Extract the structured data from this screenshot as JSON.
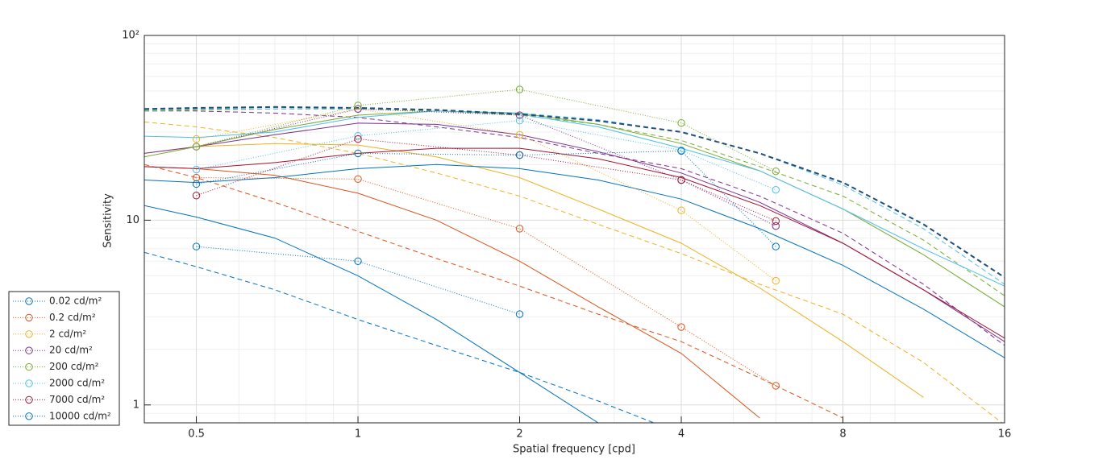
{
  "chart_data": {
    "type": "line",
    "xlabel": "Spatial frequency [cpd]",
    "ylabel": "Sensitivity",
    "xscale": "log",
    "yscale": "log",
    "xlim": [
      0.4,
      16
    ],
    "ylim": [
      0.8,
      100
    ],
    "xticks": [
      0.5,
      1,
      2,
      4,
      8,
      16
    ],
    "yticks": [
      1,
      10,
      {
        "value": 100,
        "label": "10²"
      }
    ],
    "xminor": [
      0.6,
      0.7,
      0.8,
      0.9,
      3,
      5,
      6,
      7,
      9,
      10
    ],
    "yminor": [
      0.9,
      2,
      3,
      4,
      5,
      6,
      7,
      8,
      9,
      20,
      30,
      40,
      50,
      60,
      70,
      80,
      90
    ],
    "grid": true,
    "legend": "outside-bottom-left",
    "x": [
      0.5,
      1,
      2,
      4,
      6
    ],
    "series": [
      {
        "name": "0.02 cd/m²",
        "color": "#0072bd",
        "values": [
          7.2,
          6.0,
          3.1,
          null,
          null
        ]
      },
      {
        "name": "0.2 cd/m²",
        "color": "#d95319",
        "values": [
          17,
          16.7,
          9.0,
          2.64,
          1.27
        ]
      },
      {
        "name": "2 cd/m²",
        "color": "#edb120",
        "values": [
          27.5,
          40,
          29,
          11.3,
          4.7
        ]
      },
      {
        "name": "20 cd/m²",
        "color": "#7e2f8e",
        "values": [
          25,
          40,
          37,
          16.5,
          9.3
        ]
      },
      {
        "name": "200 cd/m²",
        "color": "#77ac30",
        "values": [
          25,
          41.8,
          51,
          33.6,
          18.4
        ]
      },
      {
        "name": "2000 cd/m²",
        "color": "#4dbeee",
        "values": [
          18.8,
          28.6,
          34.6,
          23.9,
          14.6
        ]
      },
      {
        "name": "7000 cd/m²",
        "color": "#a2142f",
        "values": [
          13.6,
          27.5,
          22.5,
          16.5,
          9.9
        ]
      },
      {
        "name": "10000 cd/m²",
        "color": "#0072bd",
        "values": [
          15.7,
          23,
          22.5,
          23.7,
          7.2
        ]
      }
    ],
    "model_x": [
      0.4,
      0.5,
      0.7,
      1,
      1.4,
      2,
      2.8,
      4,
      5.6,
      8,
      11.3,
      16
    ],
    "model_curves": [
      {
        "color": "#0072bd",
        "style": "solid",
        "values": [
          12,
          10.4,
          8,
          5,
          2.9,
          1.5,
          0.8,
          null,
          null,
          null,
          null,
          null
        ]
      },
      {
        "color": "#0072bd",
        "style": "dashed",
        "values": [
          6.7,
          5.6,
          4.2,
          2.9,
          2.1,
          1.5,
          1.05,
          0.7,
          null,
          null,
          null,
          null
        ]
      },
      {
        "color": "#d95319",
        "style": "solid",
        "values": [
          19.5,
          19,
          17.5,
          14,
          10,
          6,
          3.4,
          1.9,
          0.85,
          null,
          null,
          null
        ]
      },
      {
        "color": "#d95319",
        "style": "dashed",
        "values": [
          20,
          17,
          12.5,
          8.7,
          6.2,
          4.4,
          3.1,
          2.2,
          1.4,
          0.85,
          null,
          null
        ]
      },
      {
        "color": "#edb120",
        "style": "solid",
        "values": [
          23,
          25,
          26,
          25.5,
          22,
          17,
          11.5,
          7.5,
          4.3,
          2.2,
          1.1,
          null
        ]
      },
      {
        "color": "#edb120",
        "style": "dashed",
        "values": [
          34,
          32,
          28,
          23,
          18,
          13.5,
          9.5,
          6.6,
          4.5,
          3.1,
          1.7,
          0.78
        ]
      },
      {
        "color": "#7e2f8e",
        "style": "solid",
        "values": [
          23,
          25,
          29,
          33.5,
          33,
          29,
          23.5,
          18,
          12.5,
          7.5,
          4.2,
          2.2
        ]
      },
      {
        "color": "#7e2f8e",
        "style": "dashed",
        "values": [
          39,
          39,
          38,
          36,
          32,
          28,
          23,
          19,
          13.5,
          8.5,
          4.5,
          2.1
        ]
      },
      {
        "color": "#77ac30",
        "style": "solid",
        "values": [
          22,
          25,
          31,
          37,
          39,
          38,
          33,
          26,
          18.5,
          11.5,
          6.5,
          3.4
        ]
      },
      {
        "color": "#77ac30",
        "style": "dashed",
        "values": [
          39,
          39.5,
          40,
          40,
          39,
          37,
          33,
          27,
          19.5,
          13.5,
          7.8,
          3.9
        ]
      },
      {
        "color": "#4dbeee",
        "style": "solid",
        "values": [
          28.5,
          28,
          30,
          36,
          39,
          37.5,
          32,
          24.5,
          18.5,
          11.5,
          7,
          4.4
        ]
      },
      {
        "color": "#4dbeee",
        "style": "dashed",
        "values": [
          39.5,
          40,
          40,
          40,
          39.5,
          38,
          35,
          30,
          23,
          15.5,
          9,
          4.5
        ]
      },
      {
        "color": "#a2142f",
        "style": "solid",
        "values": [
          19.5,
          19,
          20.5,
          23,
          24.5,
          24.5,
          21.5,
          17,
          12,
          7.5,
          4.2,
          2.3
        ]
      },
      {
        "color": "#0072bd",
        "style": "solid",
        "values": [
          16.5,
          16,
          17,
          19,
          20,
          19,
          16.5,
          13,
          9,
          5.7,
          3.3,
          1.8
        ]
      },
      {
        "color": "#1f4e79",
        "style": "dashed",
        "width": 2,
        "values": [
          40,
          40.5,
          41,
          40.5,
          39.5,
          37.5,
          34.5,
          30,
          23,
          16,
          9.5,
          4.9
        ]
      }
    ]
  }
}
